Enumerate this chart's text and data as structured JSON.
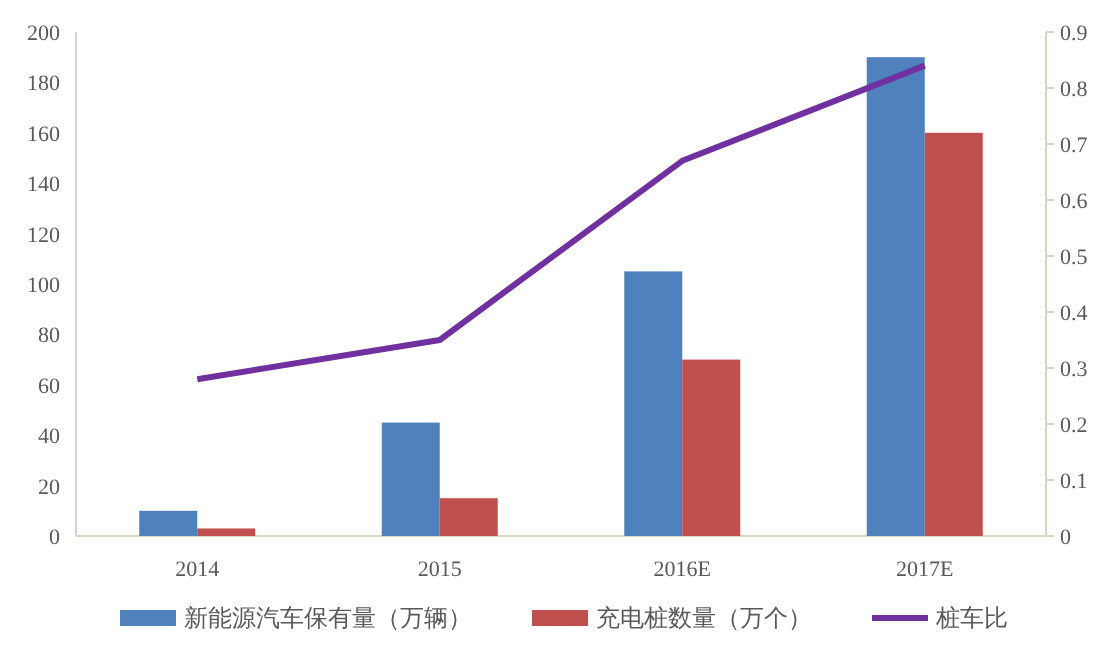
{
  "chart_data": {
    "type": "bar",
    "categories": [
      "2014",
      "2015",
      "2016E",
      "2017E"
    ],
    "series": [
      {
        "name": "新能源汽车保有量（万辆）",
        "color": "#4f81bd",
        "values": [
          10,
          45,
          105,
          190
        ]
      },
      {
        "name": "充电桩数量（万个）",
        "color": "#c0504d",
        "values": [
          3,
          15,
          70,
          160
        ]
      },
      {
        "name": "桩车比",
        "type": "line",
        "axis": "y2",
        "color": "#7030a0",
        "values": [
          0.28,
          0.35,
          0.67,
          0.84
        ]
      }
    ],
    "ylim": [
      0,
      200
    ],
    "yticks": [
      0,
      20,
      40,
      60,
      80,
      100,
      120,
      140,
      160,
      180,
      200
    ],
    "y2lim": [
      0,
      0.9
    ],
    "y2ticks": [
      0,
      0.1,
      0.2,
      0.3,
      0.4,
      0.5,
      0.6,
      0.7,
      0.8,
      0.9
    ],
    "grid": false,
    "legend": "bottom"
  }
}
